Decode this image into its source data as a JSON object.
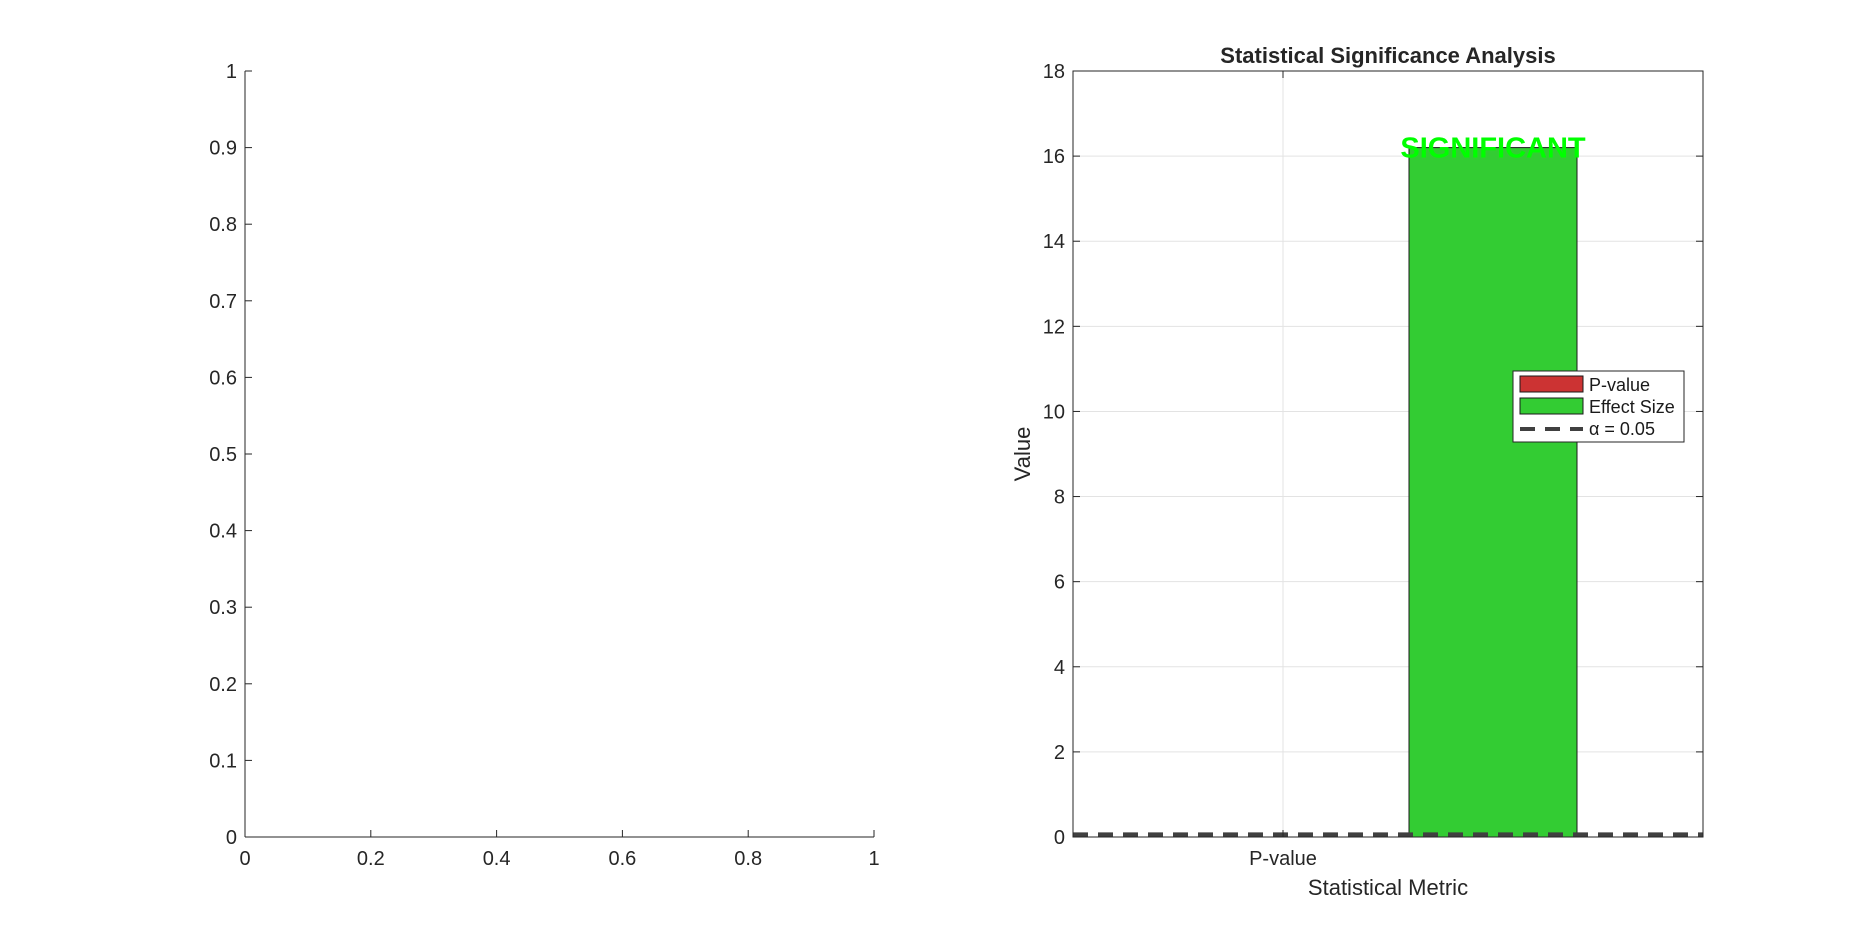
{
  "chart_data": [
    {
      "type": "bar",
      "xlim": [
        0,
        1
      ],
      "ylim": [
        0,
        1
      ],
      "xticks": [
        "0",
        "0.2",
        "0.4",
        "0.6",
        "0.8",
        "1"
      ],
      "yticks": [
        "0",
        "0.1",
        "0.2",
        "0.3",
        "0.4",
        "0.5",
        "0.6",
        "0.7",
        "0.8",
        "0.9",
        "1"
      ],
      "grid": false,
      "series": []
    },
    {
      "type": "bar",
      "title": "Statistical Significance Analysis",
      "xlabel": "Statistical Metric",
      "ylabel": "Value",
      "ylim": [
        0,
        18
      ],
      "yticks": [
        "0",
        "2",
        "4",
        "6",
        "8",
        "10",
        "12",
        "14",
        "16",
        "18"
      ],
      "xtick_labels": [
        "P-value"
      ],
      "grid": true,
      "series": [
        {
          "name": "P-value",
          "color": "#CC3333",
          "x": 1,
          "value": 0.0
        },
        {
          "name": "Effect Size",
          "color": "#33CC33",
          "x": 2,
          "value": 16.2
        }
      ],
      "reference_line": {
        "name": "α = 0.05",
        "value": 0.05,
        "style": "dashed",
        "color": "#404040"
      },
      "annotation": {
        "text": "SIGNIFICANT",
        "color": "#00FF00",
        "x": 2,
        "y": 16.2
      },
      "legend": {
        "placement": "right",
        "entries": [
          "P-value",
          "Effect Size",
          "α = 0.05"
        ]
      }
    }
  ]
}
